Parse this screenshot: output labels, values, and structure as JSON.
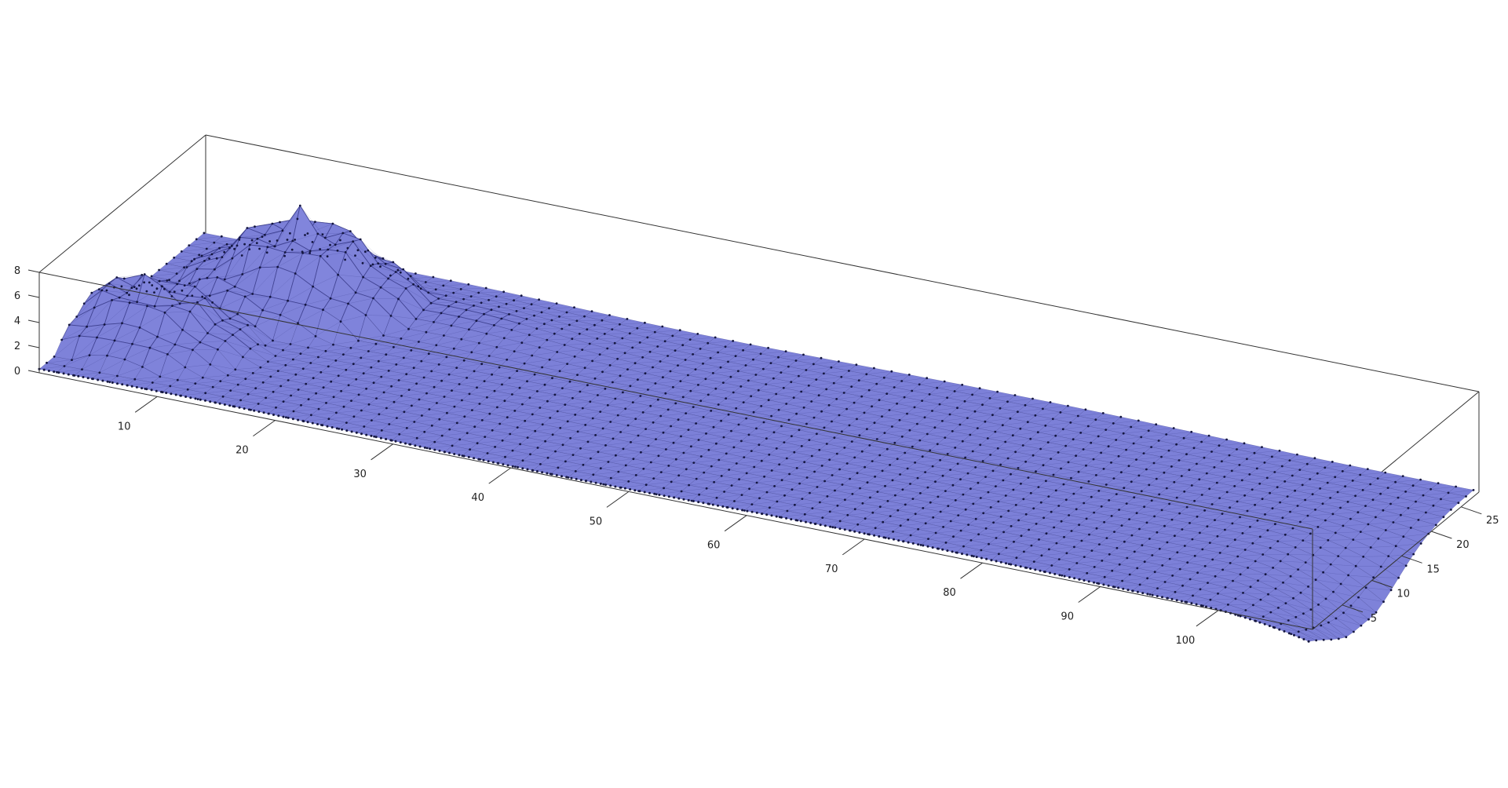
{
  "chart_data": {
    "type": "3d-surface",
    "title": "",
    "xlabel": "",
    "ylabel": "",
    "zlabel": "",
    "x_axis": {
      "ticks": [
        10,
        20,
        30,
        40,
        50,
        60,
        70,
        80,
        90,
        100
      ],
      "range": [
        0,
        108
      ]
    },
    "y_axis": {
      "ticks": [
        5,
        10,
        15,
        20,
        25
      ],
      "range": [
        0,
        28
      ]
    },
    "z_axis": {
      "ticks": [
        0,
        2,
        4,
        6,
        8
      ],
      "range": [
        0,
        8
      ]
    },
    "grid": false,
    "legend": "none",
    "surface_color": "#7b7fd6",
    "mesh_color": "#2a2c7a",
    "vertex_color": "#141640",
    "box_color": "#333333",
    "features": [
      {
        "x": 2,
        "y": 9,
        "height": 5.8,
        "name": "front-left-mound"
      },
      {
        "x": 7,
        "y": 20,
        "height": 7.6,
        "name": "rear-left-mound"
      },
      {
        "x": 104,
        "y": 9,
        "height": -4.0,
        "name": "right-end-trough"
      }
    ]
  }
}
